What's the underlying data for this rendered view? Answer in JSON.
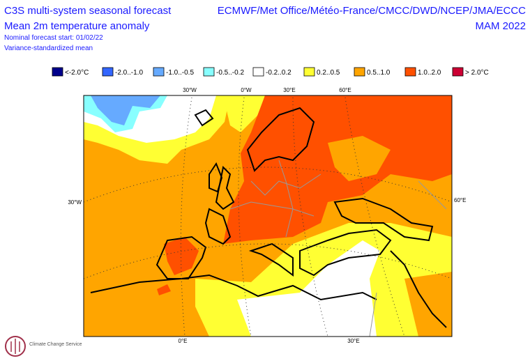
{
  "header": {
    "title": "C3S multi-system seasonal forecast",
    "subtitle": "Mean 2m temperature anomaly",
    "start": "Nominal forecast start: 01/02/22",
    "method": "Variance-standardized mean",
    "centres": "ECMWF/Met Office/Météo-France/CMCC/DWD/NCEP/JMA/ECCC",
    "season": "MAM 2022"
  },
  "legend": {
    "items": [
      {
        "label": "<-2.0°C",
        "color": "#00008c"
      },
      {
        "label": "-2.0..-1.0",
        "color": "#3366ff"
      },
      {
        "label": "-1.0..-0.5",
        "color": "#66aaff"
      },
      {
        "label": "-0.5..-0.2",
        "color": "#88ffff"
      },
      {
        "label": "-0.2..0.2",
        "color": "#ffffff"
      },
      {
        "label": "0.2..0.5",
        "color": "#ffff33"
      },
      {
        "label": "0.5..1.0",
        "color": "#ffa500"
      },
      {
        "label": "1.0..2.0",
        "color": "#ff5000"
      },
      {
        "label": "> 2.0°C",
        "color": "#cc0033"
      }
    ]
  },
  "map": {
    "top_labels": [
      "30°W",
      "0°W",
      "30°E",
      "60°E"
    ],
    "left_label": "30°W",
    "right_label": "60°E",
    "bottom_labels": [
      "0°E",
      "30°E"
    ]
  },
  "logo": {
    "text": "Climate Change Service"
  }
}
